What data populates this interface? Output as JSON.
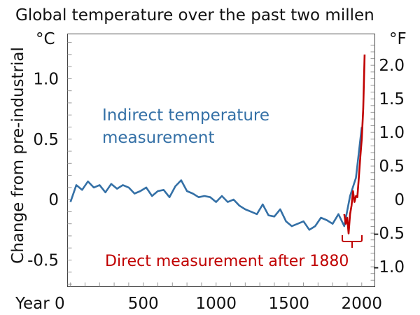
{
  "chart_data": {
    "type": "line",
    "title": "Global temperature over the past two millen",
    "ylabel": "Change from pre-industrial",
    "xlabel": "",
    "x_first_label": "Year 0",
    "unit_left": "°C",
    "unit_right": "°F",
    "xlim": [
      -20,
      2090
    ],
    "ylim": [
      -0.72,
      1.37
    ],
    "x_ticks": [
      500,
      1000,
      1500,
      2000
    ],
    "y_ticks_left": [
      {
        "v": 1.0,
        "t": "1.0"
      },
      {
        "v": 0.5,
        "t": "0.5"
      },
      {
        "v": 0,
        "t": "0"
      },
      {
        "v": -0.5,
        "t": "-0.5"
      }
    ],
    "y_ticks_right": [
      {
        "f": 2.0,
        "t": "2.0"
      },
      {
        "f": 1.5,
        "t": "1.5"
      },
      {
        "f": 1.0,
        "t": "1.0"
      },
      {
        "f": 0.5,
        "t": "0.5"
      },
      {
        "f": 0,
        "t": "0"
      },
      {
        "f": -0.5,
        "t": "-0.5"
      },
      {
        "f": -1.0,
        "t": "-1.0"
      }
    ],
    "annotations": {
      "indirect": [
        "Indirect temperature",
        "measurement"
      ],
      "direct": "Direct measurement after 1880"
    },
    "series": [
      {
        "color": "#3470a6",
        "x": [
          0,
          40,
          80,
          120,
          160,
          200,
          240,
          280,
          320,
          360,
          400,
          440,
          480,
          520,
          560,
          600,
          640,
          680,
          720,
          760,
          800,
          840,
          880,
          920,
          960,
          1000,
          1040,
          1080,
          1120,
          1160,
          1200,
          1240,
          1280,
          1320,
          1360,
          1400,
          1440,
          1480,
          1520,
          1560,
          1600,
          1640,
          1680,
          1720,
          1760,
          1800,
          1840,
          1880,
          1920,
          1960,
          2000
        ],
        "y": [
          -0.02,
          0.12,
          0.08,
          0.15,
          0.1,
          0.12,
          0.06,
          0.13,
          0.09,
          0.12,
          0.1,
          0.05,
          0.07,
          0.1,
          0.03,
          0.07,
          0.08,
          0.02,
          0.11,
          0.16,
          0.07,
          0.05,
          0.02,
          0.03,
          0.02,
          -0.02,
          0.03,
          -0.02,
          0.0,
          -0.05,
          -0.08,
          -0.1,
          -0.12,
          -0.04,
          -0.13,
          -0.14,
          -0.08,
          -0.18,
          -0.22,
          -0.2,
          -0.18,
          -0.25,
          -0.22,
          -0.15,
          -0.17,
          -0.2,
          -0.12,
          -0.22,
          0.03,
          0.18,
          0.6
        ]
      },
      {
        "color": "#c00000",
        "x": [
          1880,
          1890,
          1900,
          1910,
          1920,
          1930,
          1940,
          1950,
          1960,
          1970,
          1980,
          1990,
          2000,
          2010,
          2020
        ],
        "y": [
          -0.12,
          -0.2,
          -0.15,
          -0.28,
          -0.12,
          -0.05,
          0.07,
          -0.02,
          0.03,
          0.02,
          0.18,
          0.35,
          0.5,
          0.75,
          1.2
        ]
      }
    ],
    "grid": false
  }
}
